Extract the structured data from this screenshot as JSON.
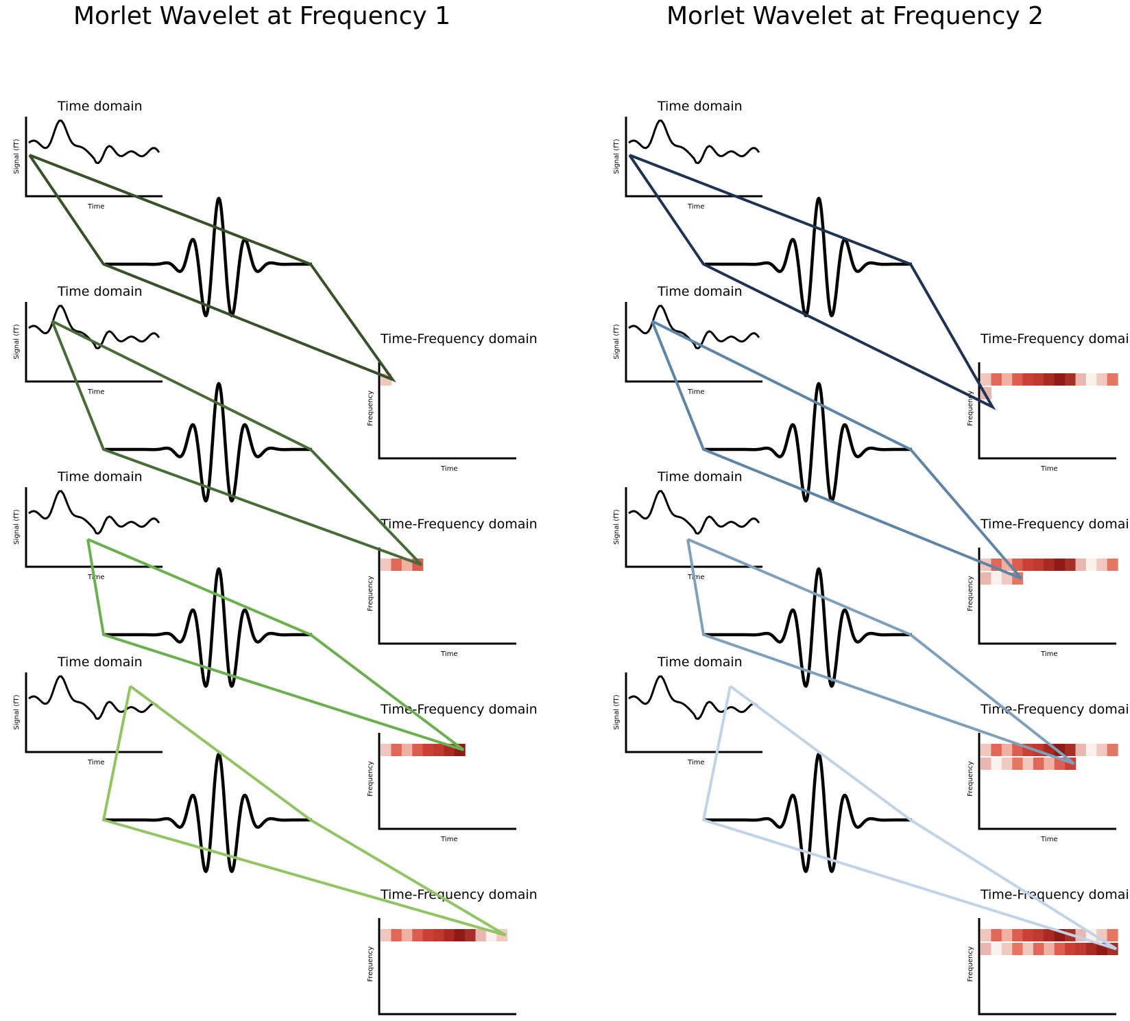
{
  "panels": [
    {
      "title": "Morlet Wavelet at Frequency 1",
      "colors": [
        "#37512a",
        "#476c38",
        "#6bb04f",
        "#92c464"
      ],
      "tf_rows": [
        [
          [
            1
          ]
        ],
        [
          [
            4
          ]
        ],
        [
          [
            8
          ]
        ],
        [
          [
            12
          ]
        ]
      ]
    },
    {
      "title": "Morlet Wavelet at Frequency 2",
      "colors": [
        "#1e3354",
        "#5e84a6",
        "#7ea0bb",
        "#c1d3e6"
      ],
      "tf_rows": [
        [
          [
            13
          ],
          [
            1
          ]
        ],
        [
          [
            13
          ],
          [
            4
          ]
        ],
        [
          [
            13
          ],
          [
            9
          ]
        ],
        [
          [
            13
          ],
          [
            13
          ]
        ]
      ]
    }
  ],
  "time_domain": {
    "title": "Time domain",
    "ylabel": "Signal (fT)",
    "xlabel": "Time"
  },
  "tf_domain": {
    "title": "Time-Frequency domain",
    "ylabel": "Frequency",
    "xlabel": "Time"
  },
  "heat_colors": [
    "#f1c6bc",
    "#e0685a",
    "#f0b0a2",
    "#de5d51",
    "#cb4034",
    "#c0392f",
    "#a92a22",
    "#8f1b16",
    "#a53028",
    "#e8b8b0",
    "#faf0ec",
    "#f2c9c0",
    "#e47763"
  ]
}
